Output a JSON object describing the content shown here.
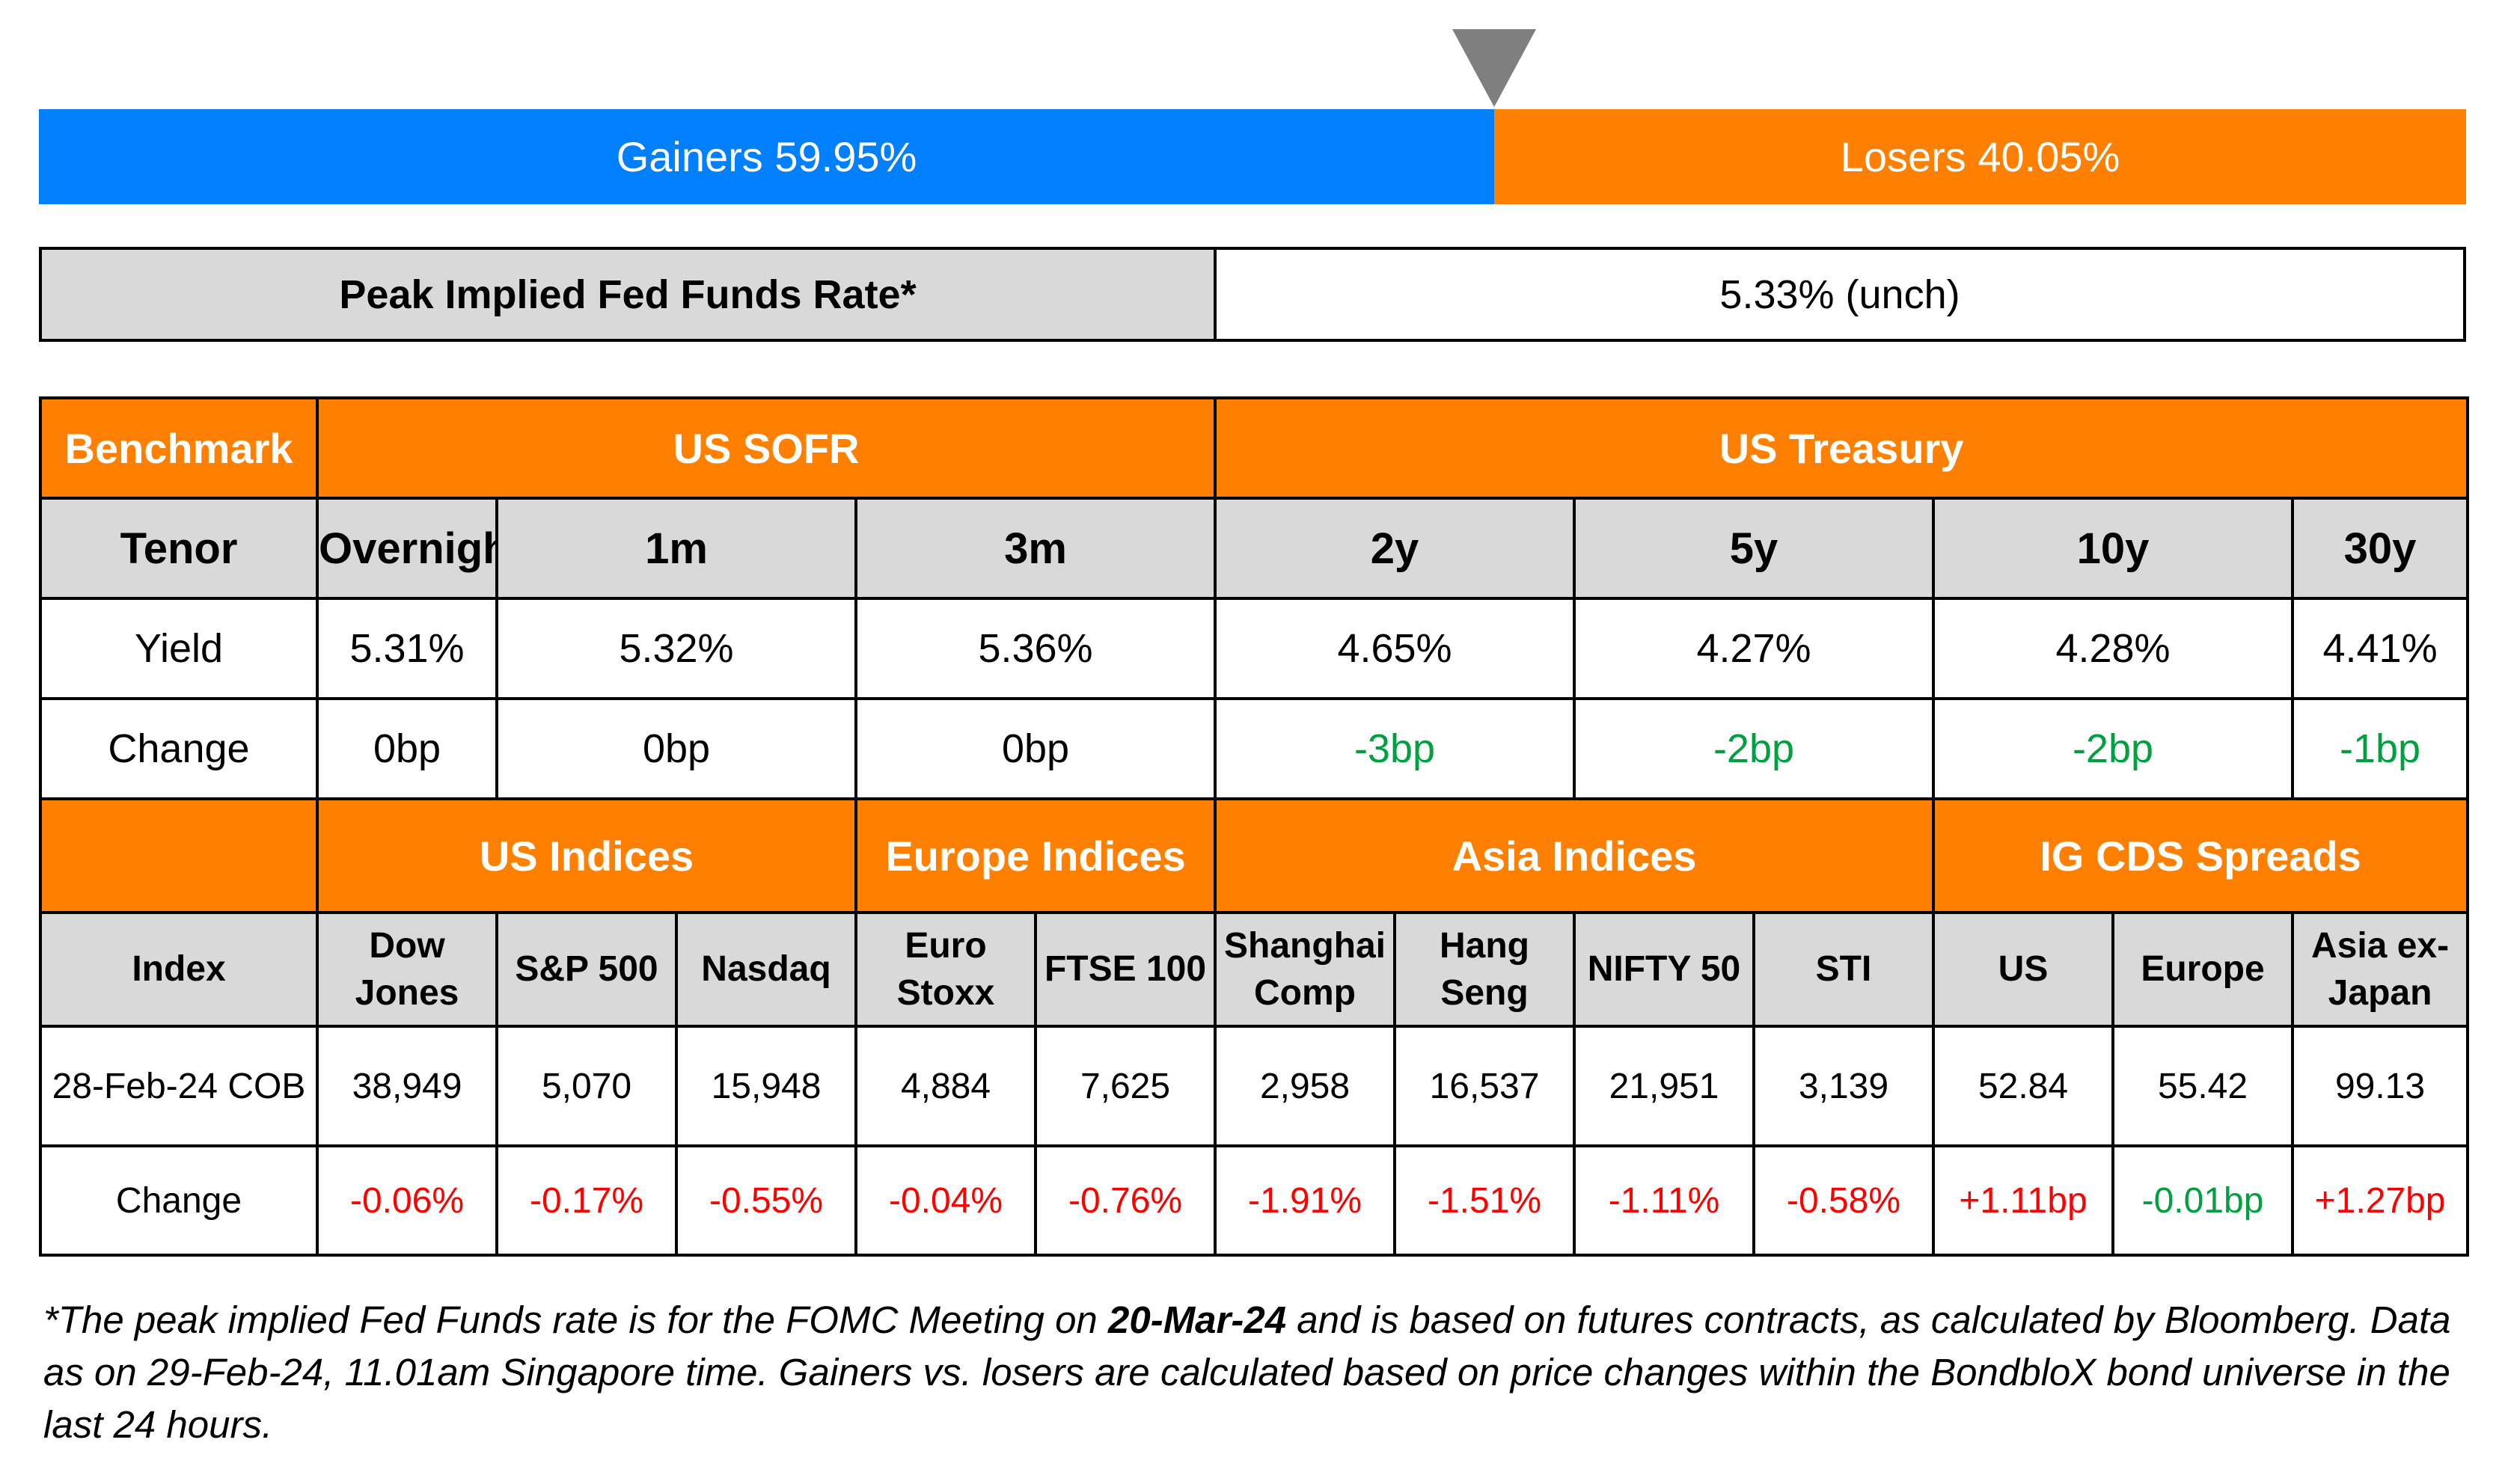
{
  "sentiment": {
    "gainers_label": "Gainers 59.95%",
    "losers_label": "Losers 40.05%",
    "gainers_pct": 59.95,
    "losers_pct": 40.05,
    "gainers_color": "#0080ff",
    "losers_color": "#ff8000",
    "pointer_color": "#7f7f7f"
  },
  "peak_rate": {
    "label": "Peak Implied Fed Funds Rate*",
    "value": "5.33% (unch)"
  },
  "rates": {
    "benchmark_label": "Benchmark",
    "sofr_label": "US SOFR",
    "treasury_label": "US Treasury",
    "tenor_label": "Tenor",
    "yield_label": "Yield",
    "change_label": "Change",
    "tenors": [
      "Overnight",
      "1m",
      "3m",
      "2y",
      "5y",
      "10y",
      "30y"
    ],
    "yields": [
      "5.31%",
      "5.32%",
      "5.36%",
      "4.65%",
      "4.27%",
      "4.28%",
      "4.41%"
    ],
    "changes": [
      "0bp",
      "0bp",
      "0bp",
      "-3bp",
      "-2bp",
      "-2bp",
      "-1bp"
    ]
  },
  "indices": {
    "us_label": "US Indices",
    "europe_label": "Europe Indices",
    "asia_label": "Asia Indices",
    "cds_label": "IG CDS Spreads",
    "index_label": "Index",
    "date_label": "28-Feb-24 COB",
    "change_label": "Change",
    "names": [
      [
        "Dow",
        "Jones"
      ],
      [
        "S&P 500"
      ],
      [
        "Nasdaq"
      ],
      [
        "Euro",
        "Stoxx"
      ],
      [
        "FTSE 100"
      ],
      [
        "Shanghai",
        "Comp"
      ],
      [
        "Hang",
        "Seng"
      ],
      [
        "NIFTY 50"
      ],
      [
        "STI"
      ],
      [
        "US"
      ],
      [
        "Europe"
      ],
      [
        "Asia ex-",
        "Japan"
      ]
    ],
    "values": [
      "38,949",
      "5,070",
      "15,948",
      "4,884",
      "7,625",
      "2,958",
      "16,537",
      "21,951",
      "3,139",
      "52.84",
      "55.42",
      "99.13"
    ],
    "changes": [
      "-0.06%",
      "-0.17%",
      "-0.55%",
      "-0.04%",
      "-0.76%",
      "-1.91%",
      "-1.51%",
      "-1.11%",
      "-0.58%",
      "+1.11bp",
      "-0.01bp",
      "+1.27bp"
    ]
  },
  "footnote": {
    "part1": "*The peak implied Fed Funds rate is for the FOMC Meeting on ",
    "bold_date": "20-Mar-24",
    "part2": " and is based on futures contracts, as calculated by Bloomberg. Data as on 29-Feb-24, 11.01am Singapore time. Gainers vs. losers are calculated based on price changes within the BondbloX bond universe in the last 24 hours."
  },
  "colors": {
    "header_bg": "#ff8000",
    "subheader_bg": "#d9d9d9",
    "positive_move": "#00a040",
    "negative_move": "#ff0000"
  }
}
